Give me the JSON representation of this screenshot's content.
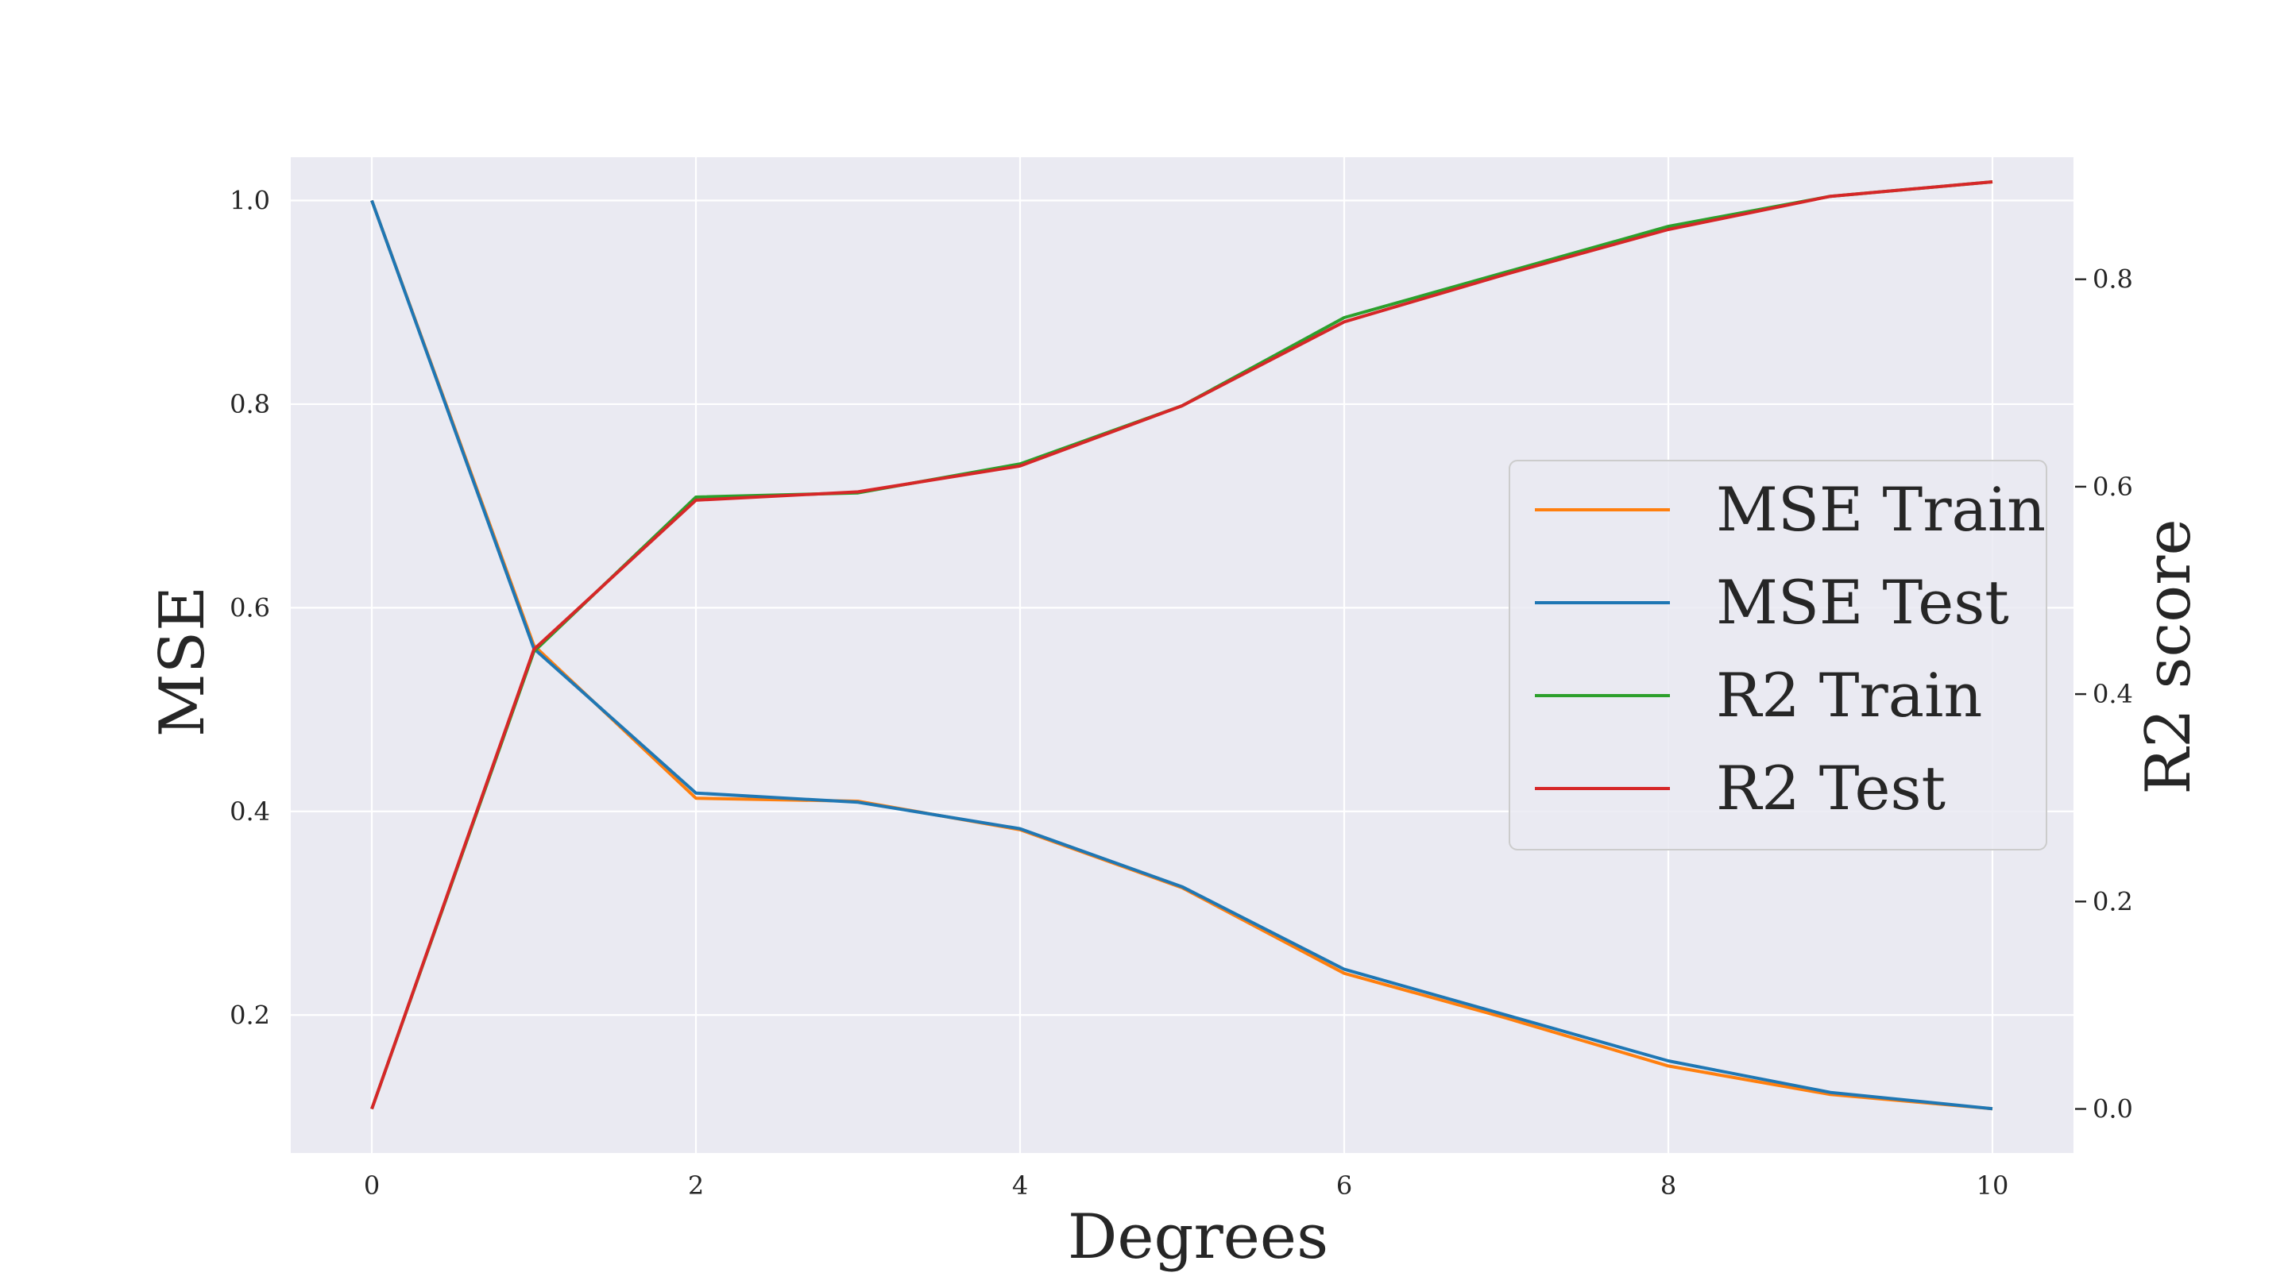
{
  "chart_data": {
    "type": "line",
    "title": "",
    "xlabel": "Degrees",
    "ylabel": "MSE",
    "y2label": "R2 score",
    "x": [
      0,
      1,
      2,
      3,
      4,
      5,
      6,
      7,
      8,
      9,
      10
    ],
    "xlim": [
      -0.5,
      10.5
    ],
    "ylim": [
      0.0645,
      1.0425
    ],
    "y2lim": [
      -0.0425,
      0.9177
    ],
    "xticks": [
      0,
      2,
      4,
      6,
      8,
      10
    ],
    "xtick_labels": [
      "0",
      "2",
      "4",
      "6",
      "8",
      "10"
    ],
    "yticks": [
      0.2,
      0.4,
      0.6,
      0.8,
      1.0
    ],
    "ytick_labels": [
      "0.2",
      "0.4",
      "0.6",
      "0.8",
      "1.0"
    ],
    "y2ticks": [
      0.0,
      0.2,
      0.4,
      0.6,
      0.8
    ],
    "y2tick_labels": [
      "0.0",
      "0.2",
      "0.4",
      "0.6",
      "0.8"
    ],
    "grid": true,
    "legend_position": "center-right",
    "series": [
      {
        "name": "MSE Train",
        "axis": "left",
        "color": "#ff7f0e",
        "values": [
          1.0,
          0.563,
          0.413,
          0.41,
          0.382,
          0.325,
          0.241,
          0.197,
          0.15,
          0.122,
          0.108
        ]
      },
      {
        "name": "MSE Test",
        "axis": "left",
        "color": "#1f77b4",
        "values": [
          1.0,
          0.56,
          0.418,
          0.409,
          0.383,
          0.326,
          0.245,
          0.2,
          0.155,
          0.124,
          0.108
        ]
      },
      {
        "name": "R2 Train",
        "axis": "right",
        "color": "#2ca02c",
        "values": [
          0.0,
          0.441,
          0.59,
          0.594,
          0.622,
          0.678,
          0.763,
          0.807,
          0.851,
          0.88,
          0.894
        ]
      },
      {
        "name": "R2 Test",
        "axis": "right",
        "color": "#d62728",
        "values": [
          0.0,
          0.443,
          0.587,
          0.595,
          0.62,
          0.678,
          0.759,
          0.805,
          0.848,
          0.88,
          0.894
        ]
      }
    ]
  }
}
